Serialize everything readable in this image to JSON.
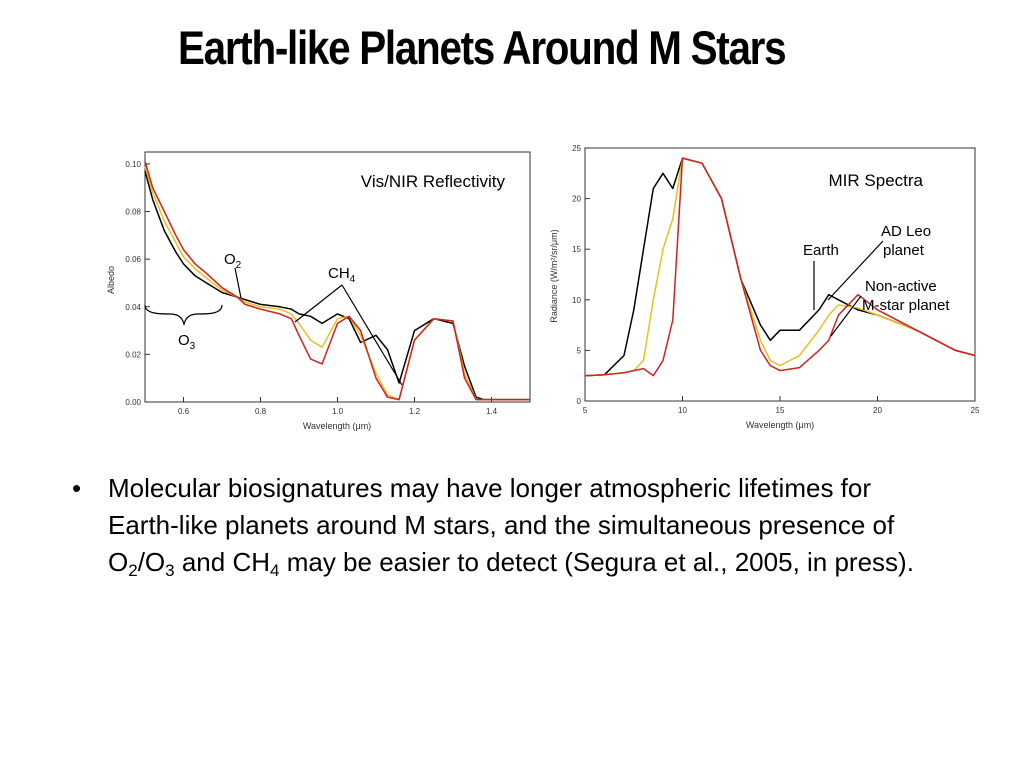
{
  "slide": {
    "title": "Earth-like Planets Around M Stars",
    "bullet": {
      "marker": "•",
      "part1": "Molecular biosignatures may have longer atmospheric lifetimes for Earth-like planets around M stars, and the simultaneous presence of O",
      "sub1": "2",
      "part2": "/O",
      "sub2": "3",
      "part3": " and CH",
      "sub3": "4",
      "part4": " may be easier to detect (Segura et al., 2005, in press)."
    }
  },
  "chart_data": [
    {
      "type": "line",
      "title": "Vis/NIR Reflectivity",
      "xlabel": "Wavelength (μm)",
      "ylabel": "Albedo",
      "xlim": [
        0.5,
        1.5
      ],
      "ylim": [
        0.0,
        0.105
      ],
      "xticks": [
        "0.6",
        "0.8",
        "1.0",
        "1.2",
        "1.4"
      ],
      "yticks": [
        "0.00",
        "0.02",
        "0.04",
        "0.06",
        "0.08",
        "0.10"
      ],
      "annotations": {
        "o2": {
          "main": "O",
          "sub": "2"
        },
        "ch4": {
          "main": "CH",
          "sub": "4"
        },
        "o3": {
          "main": "O",
          "sub": "3"
        }
      },
      "series": [
        {
          "color": "#000000",
          "x": [
            0.5,
            0.52,
            0.55,
            0.58,
            0.6,
            0.63,
            0.66,
            0.7,
            0.74,
            0.76,
            0.8,
            0.85,
            0.88,
            0.9,
            0.93,
            0.96,
            1.0,
            1.03,
            1.06,
            1.1,
            1.13,
            1.16,
            1.2,
            1.25,
            1.3,
            1.33,
            1.36,
            1.38,
            1.42,
            1.5
          ],
          "y": [
            0.097,
            0.085,
            0.072,
            0.063,
            0.058,
            0.053,
            0.05,
            0.046,
            0.044,
            0.043,
            0.041,
            0.04,
            0.039,
            0.037,
            0.036,
            0.033,
            0.037,
            0.035,
            0.025,
            0.028,
            0.022,
            0.008,
            0.03,
            0.035,
            0.033,
            0.015,
            0.002,
            0.001,
            0.001,
            0.001
          ]
        },
        {
          "color": "#e8c020",
          "x": [
            0.5,
            0.52,
            0.55,
            0.58,
            0.6,
            0.63,
            0.66,
            0.7,
            0.74,
            0.76,
            0.8,
            0.85,
            0.88,
            0.9,
            0.93,
            0.96,
            1.0,
            1.03,
            1.06,
            1.1,
            1.13,
            1.16,
            1.2,
            1.25,
            1.3,
            1.33,
            1.36,
            1.38,
            1.42,
            1.5
          ],
          "y": [
            0.099,
            0.088,
            0.076,
            0.067,
            0.061,
            0.056,
            0.052,
            0.047,
            0.044,
            0.042,
            0.04,
            0.039,
            0.037,
            0.033,
            0.026,
            0.023,
            0.035,
            0.036,
            0.028,
            0.012,
            0.003,
            0.001,
            0.026,
            0.035,
            0.034,
            0.012,
            0.001,
            0.001,
            0.001,
            0.001
          ]
        },
        {
          "color": "#d42020",
          "x": [
            0.5,
            0.52,
            0.55,
            0.58,
            0.6,
            0.63,
            0.66,
            0.7,
            0.74,
            0.76,
            0.8,
            0.85,
            0.88,
            0.9,
            0.93,
            0.96,
            1.0,
            1.03,
            1.06,
            1.1,
            1.13,
            1.16,
            1.2,
            1.25,
            1.3,
            1.33,
            1.36,
            1.38,
            1.42,
            1.5
          ],
          "y": [
            0.101,
            0.09,
            0.08,
            0.07,
            0.064,
            0.058,
            0.054,
            0.048,
            0.044,
            0.041,
            0.039,
            0.037,
            0.035,
            0.028,
            0.018,
            0.016,
            0.033,
            0.036,
            0.03,
            0.01,
            0.002,
            0.001,
            0.026,
            0.035,
            0.034,
            0.01,
            0.001,
            0.001,
            0.001,
            0.001
          ]
        }
      ]
    },
    {
      "type": "line",
      "title": "MIR Spectra",
      "xlabel": "Wavelength (μm)",
      "ylabel": "Radiance (W/m²/sr/μm)",
      "xlim": [
        5,
        25
      ],
      "ylim": [
        0,
        25
      ],
      "xticks": [
        "5",
        "10",
        "15",
        "20",
        "25"
      ],
      "yticks": [
        "0",
        "5",
        "10",
        "15",
        "20",
        "25"
      ],
      "annotations": {
        "earth": "Earth",
        "adleo_line1": "AD Leo",
        "adleo_line2": "planet",
        "nonactive_line1": "Non-active",
        "nonactive_line2": "M-star planet"
      },
      "series": [
        {
          "color": "#000000",
          "x": [
            5,
            6,
            7,
            7.5,
            8,
            8.5,
            9,
            9.5,
            10,
            11,
            12,
            13,
            14,
            14.5,
            15,
            16,
            17,
            17.5,
            18,
            19,
            20,
            22,
            24,
            25
          ],
          "y": [
            2.5,
            2.6,
            4.5,
            9,
            15,
            21,
            22.5,
            21,
            24,
            23.5,
            20,
            12,
            7.5,
            6,
            7,
            7,
            9,
            10.5,
            10,
            9,
            8.5,
            7,
            5,
            4.5
          ]
        },
        {
          "color": "#e8c020",
          "x": [
            5,
            6,
            7,
            7.5,
            8,
            8.5,
            9,
            9.5,
            10,
            11,
            12,
            13,
            14,
            14.5,
            15,
            16,
            17,
            17.5,
            18,
            19,
            20,
            22,
            24,
            25
          ],
          "y": [
            2.5,
            2.6,
            2.8,
            3,
            4,
            10,
            15,
            18,
            24,
            23.5,
            20,
            12,
            6,
            4,
            3.5,
            4.5,
            7,
            8.5,
            9.5,
            9.2,
            8.5,
            7,
            5,
            4.5
          ]
        },
        {
          "color": "#d42020",
          "x": [
            5,
            6,
            7,
            7.5,
            8,
            8.5,
            9,
            9.5,
            10,
            11,
            12,
            13,
            14,
            14.5,
            15,
            16,
            17,
            17.5,
            18,
            19,
            20,
            22,
            24,
            25
          ],
          "y": [
            2.5,
            2.6,
            2.8,
            3,
            3.2,
            2.5,
            4,
            8,
            24,
            23.5,
            20,
            12,
            5,
            3.5,
            3,
            3.3,
            5,
            6,
            8.5,
            10.5,
            9,
            7,
            5,
            4.5
          ]
        }
      ]
    }
  ]
}
